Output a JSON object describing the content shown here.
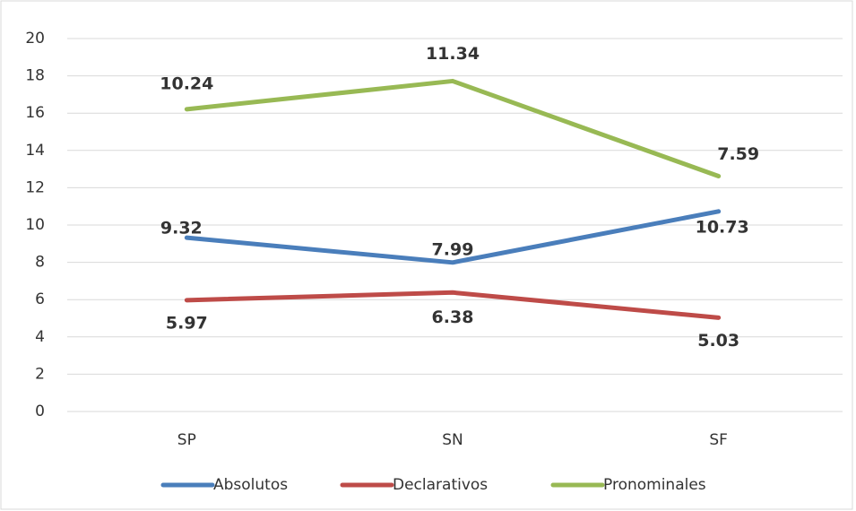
{
  "chart_data": {
    "type": "line",
    "categories": [
      "SP",
      "SN",
      "SF"
    ],
    "series": [
      {
        "name": "Absolutos",
        "color": "#4a7ebb",
        "values": [
          9.32,
          7.99,
          10.73
        ]
      },
      {
        "name": "Declarativos",
        "color": "#be4b48",
        "values": [
          5.97,
          6.38,
          5.03
        ]
      },
      {
        "name": "Pronominales",
        "color": "#98b954",
        "values": [
          10.24,
          11.34,
          7.59
        ],
        "stacked_on": "Declarativos"
      }
    ],
    "ylim": [
      0,
      20
    ],
    "yticks": [
      0,
      2,
      4,
      6,
      8,
      10,
      12,
      14,
      16,
      18,
      20
    ],
    "grid": true,
    "legend": "bottom"
  }
}
